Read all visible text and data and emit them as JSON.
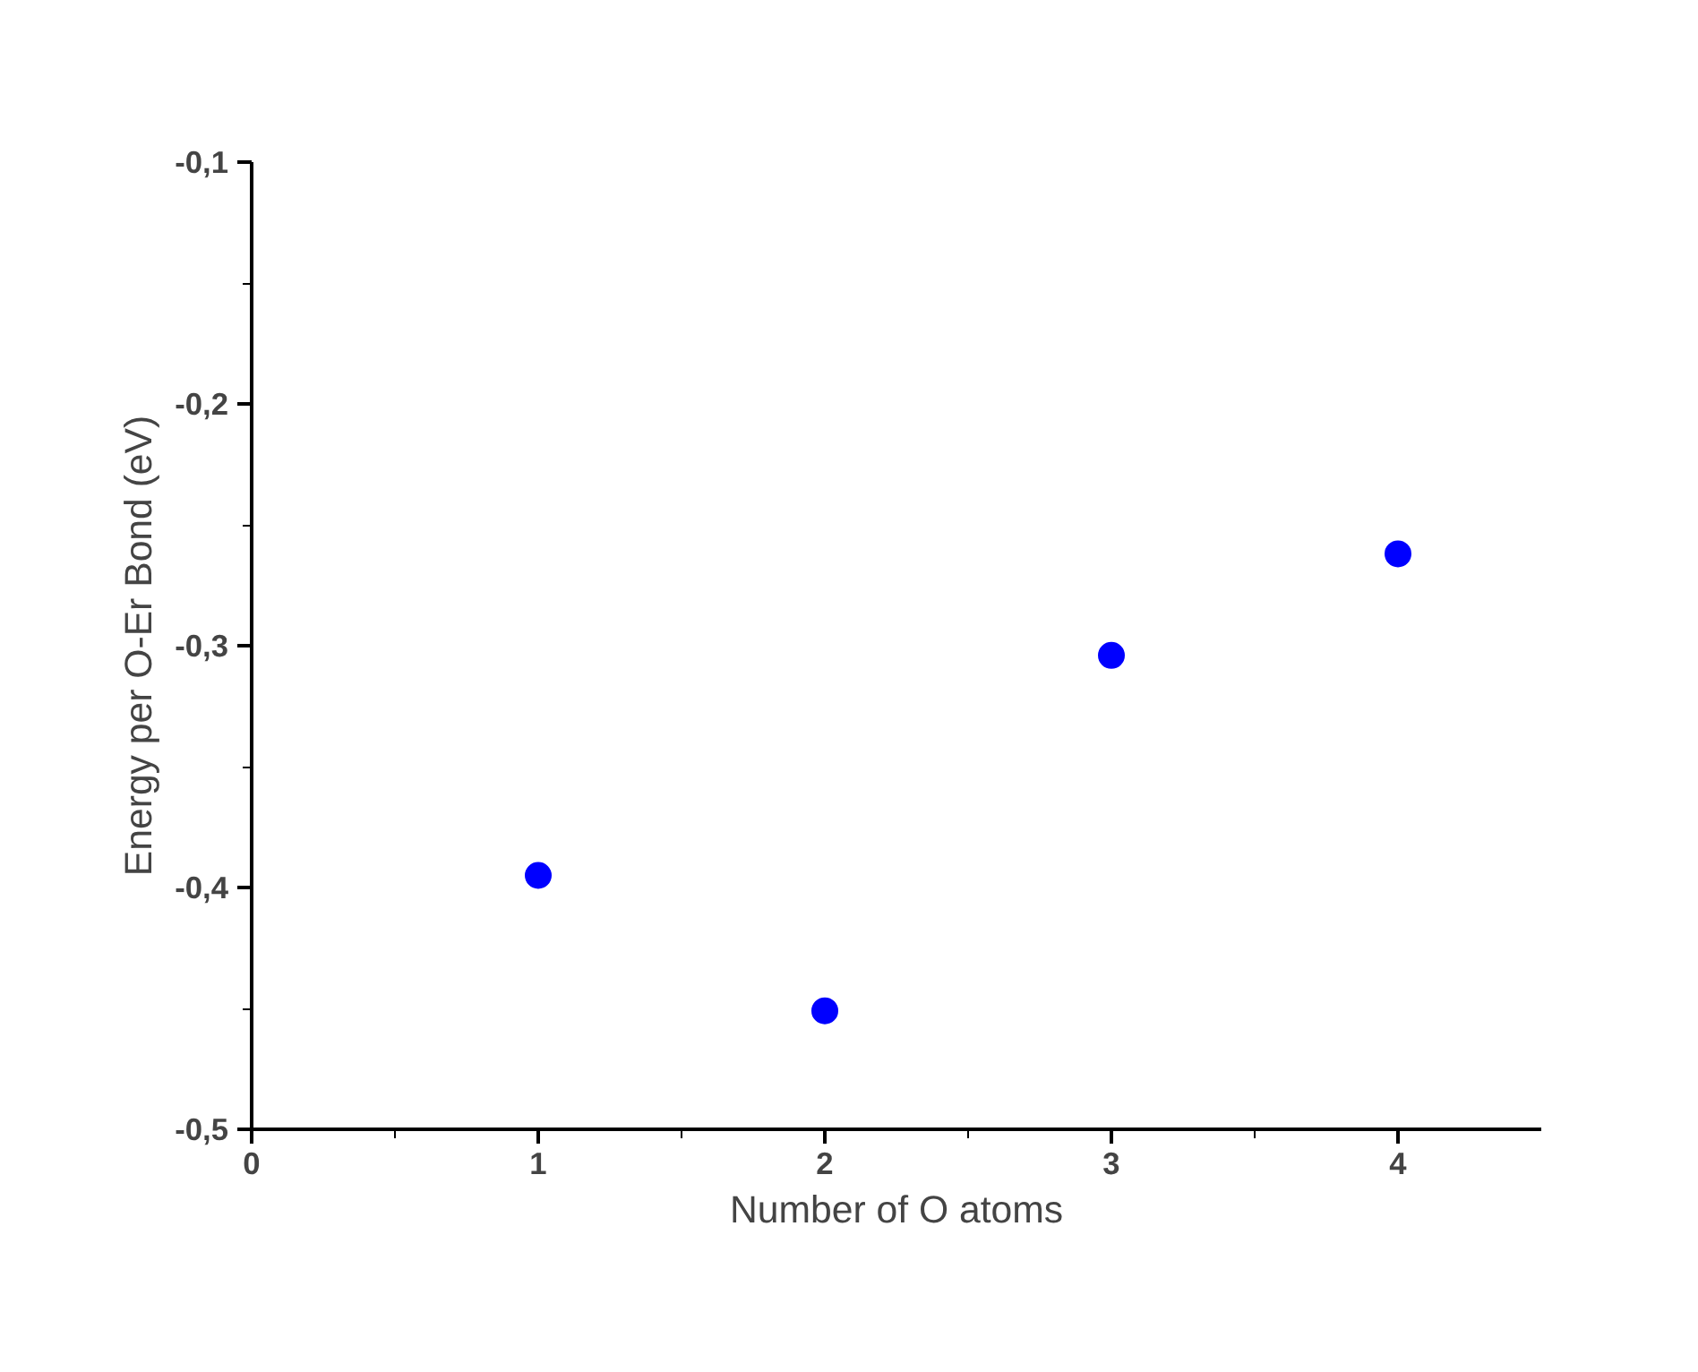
{
  "chart_data": {
    "type": "scatter",
    "xlabel": "Number of O atoms",
    "ylabel": "Energy per O-Er Bond (eV)",
    "x": [
      1,
      2,
      3,
      4
    ],
    "series": [
      {
        "color": "#0000ff",
        "values": [
          -0.395,
          -0.451,
          -0.304,
          -0.262
        ]
      }
    ],
    "xlim": [
      0,
      4.5
    ],
    "ylim": [
      -0.5,
      -0.1
    ],
    "xticks": [
      0,
      {
        "value": 0.5,
        "label": null
      },
      1,
      {
        "value": 1.5,
        "label": null
      },
      2,
      {
        "value": 2.5,
        "label": null
      },
      3,
      {
        "value": 3.5,
        "label": null
      },
      4
    ],
    "yticks": [
      {
        "value": -0.5,
        "label": "-0,5"
      },
      {
        "value": -0.45,
        "label": null
      },
      {
        "value": -0.4,
        "label": "-0,4"
      },
      {
        "value": -0.35,
        "label": null
      },
      {
        "value": -0.3,
        "label": "-0,3"
      },
      {
        "value": -0.25,
        "label": null
      },
      {
        "value": -0.2,
        "label": "-0,2"
      },
      {
        "value": -0.15,
        "label": null
      },
      {
        "value": -0.1,
        "label": "-0,1"
      }
    ],
    "marker": "circle",
    "grid": false
  }
}
